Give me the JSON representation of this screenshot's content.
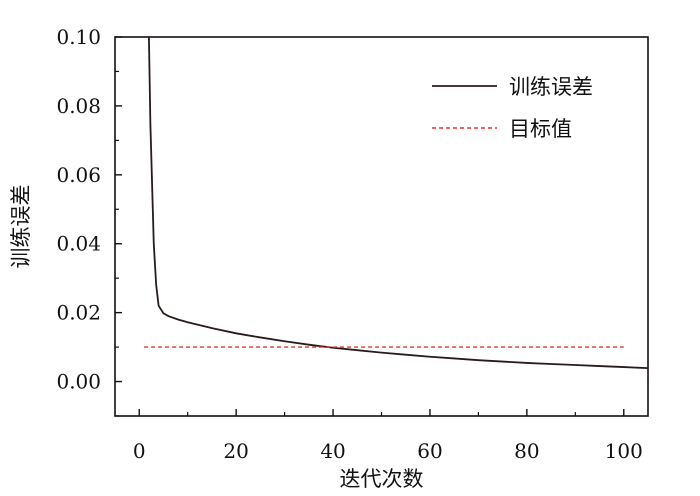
{
  "chart_data": {
    "type": "line",
    "title": "",
    "xlabel": "迭代次数",
    "ylabel": "训练误差",
    "xlim": [
      -5,
      105
    ],
    "ylim": [
      -0.01,
      0.1
    ],
    "x_ticks": [
      0,
      20,
      40,
      60,
      80,
      100
    ],
    "y_ticks": [
      0.0,
      0.02,
      0.04,
      0.06,
      0.08,
      0.1
    ],
    "x_tick_labels": [
      "0",
      "20",
      "40",
      "60",
      "80",
      "100"
    ],
    "y_tick_labels": [
      "0.00",
      "0.02",
      "0.04",
      "0.06",
      "0.08",
      "0.10"
    ],
    "grid": false,
    "legend_position": "top-right",
    "series": [
      {
        "name": "训练误差",
        "style": "solid",
        "color": "#2b1a1a",
        "x": [
          2,
          2.3,
          2.7,
          3,
          3.5,
          4,
          5,
          6,
          8,
          10,
          15,
          20,
          25,
          30,
          35,
          40,
          45,
          50,
          55,
          60,
          65,
          70,
          75,
          80,
          85,
          90,
          95,
          100,
          105
        ],
        "y": [
          0.1,
          0.075,
          0.055,
          0.04,
          0.028,
          0.022,
          0.0198,
          0.019,
          0.018,
          0.0172,
          0.0155,
          0.014,
          0.0128,
          0.0117,
          0.0107,
          0.0098,
          0.0091,
          0.0084,
          0.0078,
          0.0072,
          0.0067,
          0.0062,
          0.0058,
          0.0054,
          0.0051,
          0.0048,
          0.0045,
          0.0042,
          0.0039
        ]
      },
      {
        "name": "目标值",
        "style": "dashed",
        "color": "#e8312a",
        "x": [
          1,
          100
        ],
        "y": [
          0.01,
          0.01
        ]
      }
    ]
  }
}
